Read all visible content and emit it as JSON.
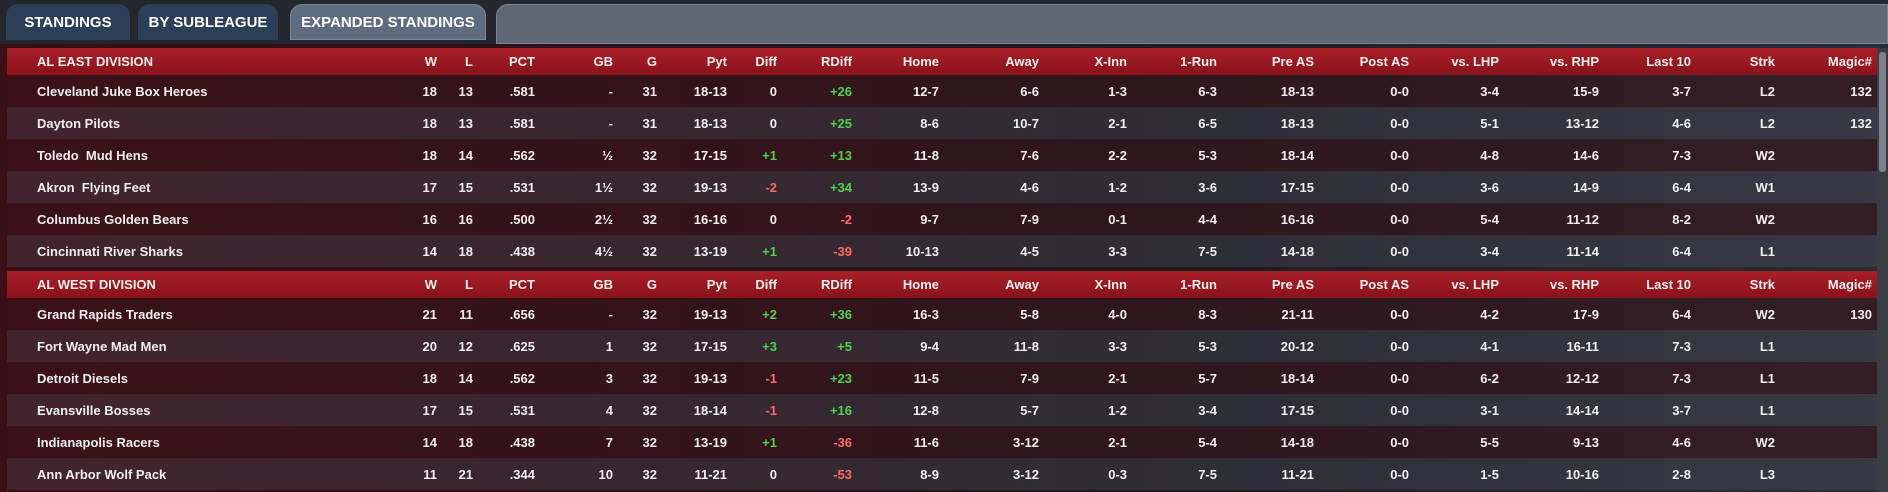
{
  "tabs": [
    {
      "label": "STANDINGS",
      "active": false
    },
    {
      "label": "BY SUBLEAGUE",
      "active": false
    },
    {
      "label": "EXPANDED STANDINGS",
      "active": true
    }
  ],
  "columns": [
    "W",
    "L",
    "PCT",
    "GB",
    "G",
    "Pyt",
    "Diff",
    "RDiff",
    "Home",
    "Away",
    "X-Inn",
    "1-Run",
    "Pre AS",
    "Post AS",
    "vs. LHP",
    "vs. RHP",
    "Last 10",
    "Strk",
    "Magic#"
  ],
  "divisions": [
    {
      "name": "AL EAST DIVISION",
      "teams": [
        {
          "team": "Cleveland Juke Box Heroes",
          "w": "18",
          "l": "13",
          "pct": ".581",
          "gb": "-",
          "g": "31",
          "pyt": "18-13",
          "diff": "0",
          "rdiff": "+26",
          "home": "12-7",
          "away": "6-6",
          "xinn": "1-3",
          "onerun": "6-3",
          "preas": "18-13",
          "postas": "0-0",
          "vlhp": "3-4",
          "vrhp": "15-9",
          "last10": "3-7",
          "strk": "L2",
          "magic": "132"
        },
        {
          "team": "Dayton Pilots",
          "w": "18",
          "l": "13",
          "pct": ".581",
          "gb": "-",
          "g": "31",
          "pyt": "18-13",
          "diff": "0",
          "rdiff": "+25",
          "home": "8-6",
          "away": "10-7",
          "xinn": "2-1",
          "onerun": "6-5",
          "preas": "18-13",
          "postas": "0-0",
          "vlhp": "5-1",
          "vrhp": "13-12",
          "last10": "4-6",
          "strk": "L2",
          "magic": "132"
        },
        {
          "team": "Toledo  Mud Hens",
          "w": "18",
          "l": "14",
          "pct": ".562",
          "gb": "½",
          "g": "32",
          "pyt": "17-15",
          "diff": "+1",
          "rdiff": "+13",
          "home": "11-8",
          "away": "7-6",
          "xinn": "2-2",
          "onerun": "5-3",
          "preas": "18-14",
          "postas": "0-0",
          "vlhp": "4-8",
          "vrhp": "14-6",
          "last10": "7-3",
          "strk": "W2",
          "magic": ""
        },
        {
          "team": "Akron  Flying Feet",
          "w": "17",
          "l": "15",
          "pct": ".531",
          "gb": "1½",
          "g": "32",
          "pyt": "19-13",
          "diff": "-2",
          "rdiff": "+34",
          "home": "13-9",
          "away": "4-6",
          "xinn": "1-2",
          "onerun": "3-6",
          "preas": "17-15",
          "postas": "0-0",
          "vlhp": "3-6",
          "vrhp": "14-9",
          "last10": "6-4",
          "strk": "W1",
          "magic": ""
        },
        {
          "team": "Columbus Golden Bears",
          "w": "16",
          "l": "16",
          "pct": ".500",
          "gb": "2½",
          "g": "32",
          "pyt": "16-16",
          "diff": "0",
          "rdiff": "-2",
          "home": "9-7",
          "away": "7-9",
          "xinn": "0-1",
          "onerun": "4-4",
          "preas": "16-16",
          "postas": "0-0",
          "vlhp": "5-4",
          "vrhp": "11-12",
          "last10": "8-2",
          "strk": "W2",
          "magic": ""
        },
        {
          "team": "Cincinnati River Sharks",
          "w": "14",
          "l": "18",
          "pct": ".438",
          "gb": "4½",
          "g": "32",
          "pyt": "13-19",
          "diff": "+1",
          "rdiff": "-39",
          "home": "10-13",
          "away": "4-5",
          "xinn": "3-3",
          "onerun": "7-5",
          "preas": "14-18",
          "postas": "0-0",
          "vlhp": "3-4",
          "vrhp": "11-14",
          "last10": "6-4",
          "strk": "L1",
          "magic": ""
        }
      ]
    },
    {
      "name": "AL WEST DIVISION",
      "teams": [
        {
          "team": "Grand Rapids Traders",
          "w": "21",
          "l": "11",
          "pct": ".656",
          "gb": "-",
          "g": "32",
          "pyt": "19-13",
          "diff": "+2",
          "rdiff": "+36",
          "home": "16-3",
          "away": "5-8",
          "xinn": "4-0",
          "onerun": "8-3",
          "preas": "21-11",
          "postas": "0-0",
          "vlhp": "4-2",
          "vrhp": "17-9",
          "last10": "6-4",
          "strk": "W2",
          "magic": "130"
        },
        {
          "team": "Fort Wayne Mad Men",
          "w": "20",
          "l": "12",
          "pct": ".625",
          "gb": "1",
          "g": "32",
          "pyt": "17-15",
          "diff": "+3",
          "rdiff": "+5",
          "home": "9-4",
          "away": "11-8",
          "xinn": "3-3",
          "onerun": "5-3",
          "preas": "20-12",
          "postas": "0-0",
          "vlhp": "4-1",
          "vrhp": "16-11",
          "last10": "7-3",
          "strk": "L1",
          "magic": ""
        },
        {
          "team": "Detroit Diesels",
          "w": "18",
          "l": "14",
          "pct": ".562",
          "gb": "3",
          "g": "32",
          "pyt": "19-13",
          "diff": "-1",
          "rdiff": "+23",
          "home": "11-5",
          "away": "7-9",
          "xinn": "2-1",
          "onerun": "5-7",
          "preas": "18-14",
          "postas": "0-0",
          "vlhp": "6-2",
          "vrhp": "12-12",
          "last10": "7-3",
          "strk": "L1",
          "magic": ""
        },
        {
          "team": "Evansville Bosses",
          "w": "17",
          "l": "15",
          "pct": ".531",
          "gb": "4",
          "g": "32",
          "pyt": "18-14",
          "diff": "-1",
          "rdiff": "+16",
          "home": "12-8",
          "away": "5-7",
          "xinn": "1-2",
          "onerun": "3-4",
          "preas": "17-15",
          "postas": "0-0",
          "vlhp": "3-1",
          "vrhp": "14-14",
          "last10": "3-7",
          "strk": "L1",
          "magic": ""
        },
        {
          "team": "Indianapolis Racers",
          "w": "14",
          "l": "18",
          "pct": ".438",
          "gb": "7",
          "g": "32",
          "pyt": "13-19",
          "diff": "+1",
          "rdiff": "-36",
          "home": "11-6",
          "away": "3-12",
          "xinn": "2-1",
          "onerun": "5-4",
          "preas": "14-18",
          "postas": "0-0",
          "vlhp": "5-5",
          "vrhp": "9-13",
          "last10": "4-6",
          "strk": "W2",
          "magic": ""
        },
        {
          "team": "Ann Arbor Wolf Pack",
          "w": "11",
          "l": "21",
          "pct": ".344",
          "gb": "10",
          "g": "32",
          "pyt": "11-21",
          "diff": "0",
          "rdiff": "-53",
          "home": "8-9",
          "away": "3-12",
          "xinn": "0-3",
          "onerun": "7-5",
          "preas": "11-21",
          "postas": "0-0",
          "vlhp": "1-5",
          "vrhp": "10-16",
          "last10": "2-8",
          "strk": "L3",
          "magic": ""
        }
      ]
    }
  ],
  "colors": {
    "header_red": "#a91f28",
    "positive": "#4fd24b",
    "negative": "#ff6b63",
    "tab_blue": "#2c3f59"
  }
}
